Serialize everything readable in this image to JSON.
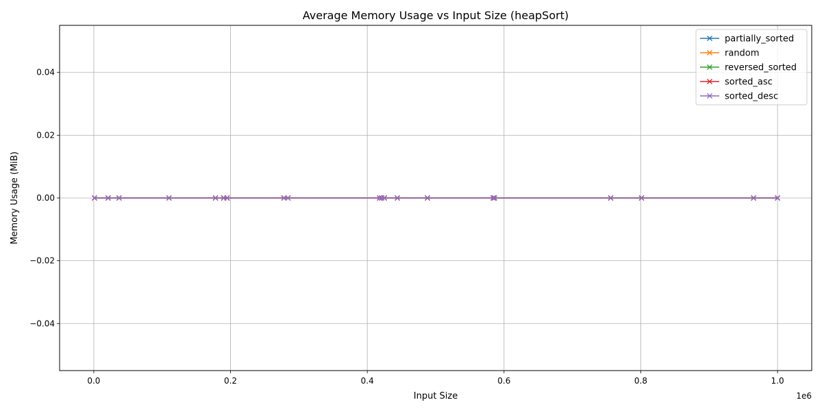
{
  "chart_data": {
    "type": "line",
    "title": "Average Memory Usage vs Input Size (heapSort)",
    "xlabel": "Input Size",
    "ylabel": "Memory Usage (MiB)",
    "x_offset_label": "1e6",
    "xlim": [
      -50000,
      1050000
    ],
    "ylim": [
      -0.055,
      0.055
    ],
    "grid": true,
    "legend_position": "top-right",
    "marker": "x",
    "x_ticks": [
      0.0,
      0.2,
      0.4,
      0.6,
      0.8,
      1.0
    ],
    "x_tick_labels": [
      "0.0",
      "0.2",
      "0.4",
      "0.6",
      "0.8",
      "1.0"
    ],
    "y_ticks": [
      -0.04,
      -0.02,
      0.0,
      0.02,
      0.04
    ],
    "y_tick_labels": [
      "−0.04",
      "−0.02",
      "0.00",
      "0.02",
      "0.04"
    ],
    "x": [
      1000,
      21000,
      37000,
      110000,
      178000,
      190000,
      195000,
      278000,
      284000,
      418000,
      421000,
      425000,
      444000,
      488000,
      584000,
      586000,
      756000,
      801000,
      965000,
      1000000
    ],
    "series": [
      {
        "name": "partially_sorted",
        "color": "#1f77b4",
        "values": [
          0,
          0,
          0,
          0,
          0,
          0,
          0,
          0,
          0,
          0,
          0,
          0,
          0,
          0,
          0,
          0,
          0,
          0,
          0,
          0
        ]
      },
      {
        "name": "random",
        "color": "#ff7f0e",
        "values": [
          0,
          0,
          0,
          0,
          0,
          0,
          0,
          0,
          0,
          0,
          0,
          0,
          0,
          0,
          0,
          0,
          0,
          0,
          0,
          0
        ]
      },
      {
        "name": "reversed_sorted",
        "color": "#2ca02c",
        "values": [
          0,
          0,
          0,
          0,
          0,
          0,
          0,
          0,
          0,
          0,
          0,
          0,
          0,
          0,
          0,
          0,
          0,
          0,
          0,
          0
        ]
      },
      {
        "name": "sorted_asc",
        "color": "#d62728",
        "values": [
          0,
          0,
          0,
          0,
          0,
          0,
          0,
          0,
          0,
          0,
          0,
          0,
          0,
          0,
          0,
          0,
          0,
          0,
          0,
          0
        ]
      },
      {
        "name": "sorted_desc",
        "color": "#9467bd",
        "values": [
          0,
          0,
          0,
          0,
          0,
          0,
          0,
          0,
          0,
          0,
          0,
          0,
          0,
          0,
          0,
          0,
          0,
          0,
          0,
          0
        ]
      }
    ]
  }
}
